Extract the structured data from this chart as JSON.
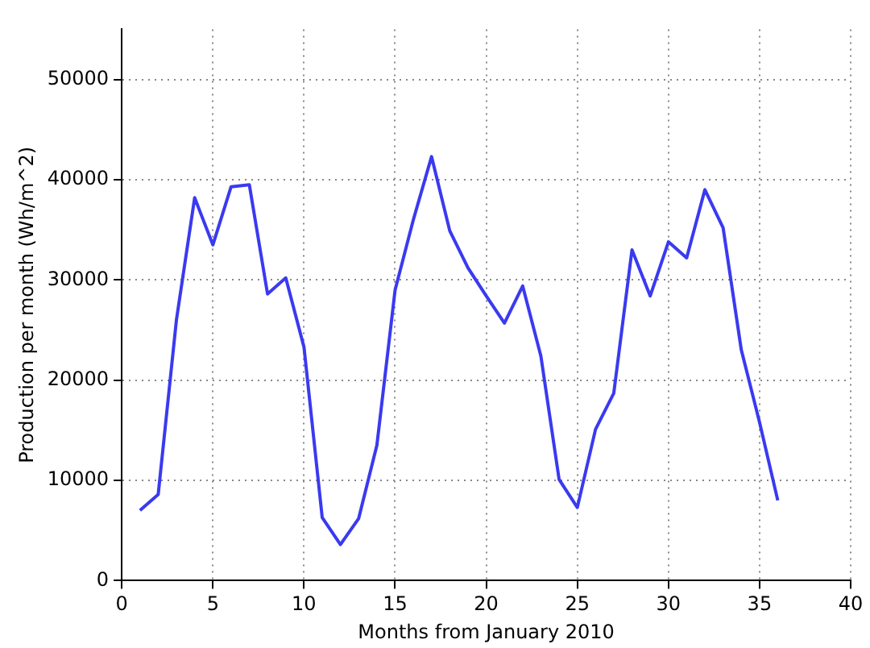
{
  "chart_data": {
    "type": "line",
    "xlabel": "Months from January 2010",
    "ylabel": "Production per month (Wh/m^2)",
    "x": [
      1,
      2,
      3,
      4,
      5,
      6,
      7,
      8,
      9,
      10,
      11,
      12,
      13,
      14,
      15,
      16,
      17,
      18,
      19,
      20,
      21,
      22,
      23,
      24,
      25,
      26,
      27,
      28,
      29,
      30,
      31,
      32,
      33,
      34,
      35,
      36
    ],
    "series": [
      {
        "color": "#3a3af0",
        "values": [
          7000,
          8600,
          26000,
          38200,
          33500,
          39300,
          39500,
          28600,
          30200,
          23300,
          6300,
          3600,
          6200,
          13500,
          29000,
          36000,
          42300,
          34900,
          31200,
          28400,
          25700,
          29400,
          22400,
          10100,
          7300,
          15100,
          18700,
          33000,
          28400,
          33800,
          32200,
          39000,
          35200,
          23000,
          15800,
          8000
        ]
      }
    ],
    "xlim": [
      0,
      40
    ],
    "xticks": [
      0,
      5,
      10,
      15,
      20,
      25,
      30,
      35,
      40
    ],
    "ylim": [
      0,
      55000
    ],
    "yticks": [
      0,
      10000,
      20000,
      30000,
      40000,
      50000
    ],
    "grid": true,
    "legend": false,
    "marker": "none",
    "line_style": "solid"
  }
}
